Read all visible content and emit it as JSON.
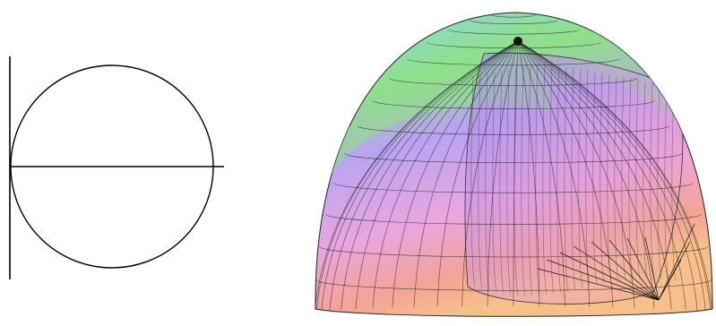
{
  "figure": {
    "left_panel": {
      "shape": "circle-tangent-to-vertical-axis",
      "horizontal_axis": true,
      "vertical_axis": true
    },
    "right_panel": {
      "shape": "wireframe-hemisphere-with-inner-cylinder",
      "mesh_color": "#1a1a1a",
      "palette": {
        "sky": "#8fd6e6",
        "green": "#8fe08a",
        "lavender": "#b9a3f2",
        "pink": "#e9a6e0",
        "salmon": "#f3a397",
        "peach": "#f7c08a"
      }
    }
  }
}
